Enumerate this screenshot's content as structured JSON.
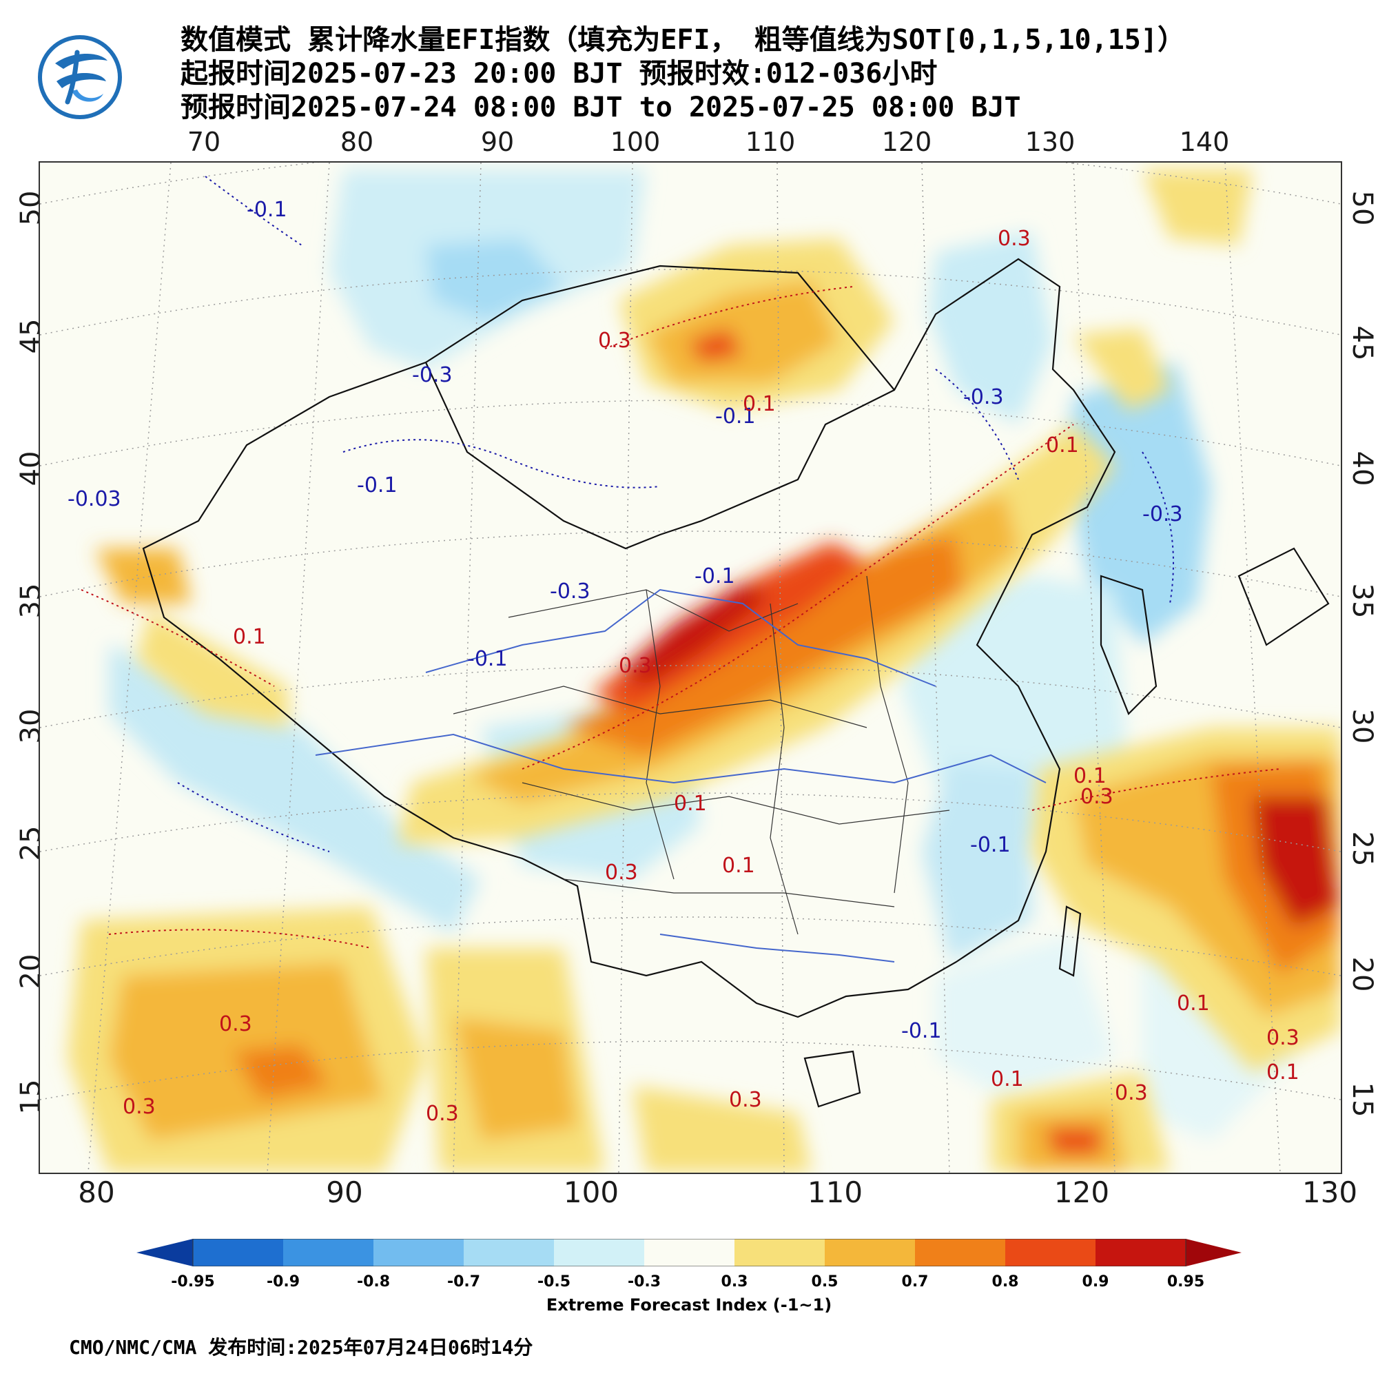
{
  "header": {
    "title_line1": "数值模式 累计降水量EFI指数（填充为EFI， 粗等值线为SOT[0,1,5,10,15]）",
    "title_line2": "起报时间2025-07-23 20:00 BJT 预报时效:012-036小时",
    "title_line3": "预报时间2025-07-24 08:00 BJT to 2025-07-25 08:00 BJT"
  },
  "logo": {
    "icon": "cma-logo-icon",
    "color": "#1f6fb8"
  },
  "axes": {
    "top_lon": [
      "70",
      "80",
      "90",
      "100",
      "110",
      "120",
      "130",
      "140"
    ],
    "bottom_lon": [
      "80",
      "90",
      "100",
      "110",
      "120",
      "130"
    ],
    "left_lat": [
      "50",
      "45",
      "40",
      "35",
      "30",
      "25",
      "20",
      "15"
    ],
    "right_lat": [
      "50",
      "45",
      "40",
      "35",
      "30",
      "25",
      "20",
      "15"
    ]
  },
  "contour_labels": [
    {
      "text": "-0.1",
      "color": "#1a1aa8"
    },
    {
      "text": "-0.3",
      "color": "#1a1aa8"
    },
    {
      "text": "-0.1",
      "color": "#1a1aa8"
    },
    {
      "text": "-0.03",
      "color": "#1a1aa8"
    },
    {
      "text": "-0.3",
      "color": "#1a1aa8"
    },
    {
      "text": "-0.1",
      "color": "#1a1aa8"
    },
    {
      "text": "-0.1",
      "color": "#1a1aa8"
    },
    {
      "text": "-0.3",
      "color": "#1a1aa8"
    },
    {
      "text": "-0.3",
      "color": "#1a1aa8"
    },
    {
      "text": "-0.1",
      "color": "#1a1aa8"
    },
    {
      "text": "-0.1",
      "color": "#1a1aa8"
    },
    {
      "text": "-0.1",
      "color": "#1a1aa8"
    },
    {
      "text": "0.3",
      "color": "#c0121a"
    },
    {
      "text": "0.1",
      "color": "#c0121a"
    },
    {
      "text": "0.3",
      "color": "#c0121a"
    },
    {
      "text": "0.1",
      "color": "#c0121a"
    },
    {
      "text": "0.3",
      "color": "#c0121a"
    },
    {
      "text": "0.1",
      "color": "#c0121a"
    },
    {
      "text": "0.3",
      "color": "#c0121a"
    },
    {
      "text": "0.1",
      "color": "#c0121a"
    },
    {
      "text": "0.1",
      "color": "#c0121a"
    },
    {
      "text": "0.3",
      "color": "#c0121a"
    },
    {
      "text": "0.1",
      "color": "#c0121a"
    },
    {
      "text": "0.3",
      "color": "#c0121a"
    },
    {
      "text": "0.3",
      "color": "#c0121a"
    },
    {
      "text": "0.3",
      "color": "#c0121a"
    },
    {
      "text": "0.3",
      "color": "#c0121a"
    },
    {
      "text": "0.1",
      "color": "#c0121a"
    },
    {
      "text": "0.1",
      "color": "#c0121a"
    },
    {
      "text": "0.3",
      "color": "#c0121a"
    },
    {
      "text": "0.3",
      "color": "#c0121a"
    },
    {
      "text": "0.1",
      "color": "#c0121a"
    }
  ],
  "colorbar": {
    "colors": [
      "#0a3c9e",
      "#1e6fd0",
      "#3b93e2",
      "#72bcef",
      "#a6dcf4",
      "#d2f1f7",
      "#fbfcf3",
      "#f7e07a",
      "#f4b73a",
      "#f08019",
      "#ea4a16",
      "#c6150f",
      "#a0060a"
    ],
    "labels": [
      "-0.95",
      "-0.9",
      "-0.8",
      "-0.7",
      "-0.5",
      "-0.3",
      "0.3",
      "0.5",
      "0.7",
      "0.8",
      "0.9",
      "0.95"
    ],
    "title": "Extreme Forecast Index (-1~1)"
  },
  "footer": {
    "text": "CMO/NMC/CMA 发布时间:2025年07月24日06时14分"
  }
}
